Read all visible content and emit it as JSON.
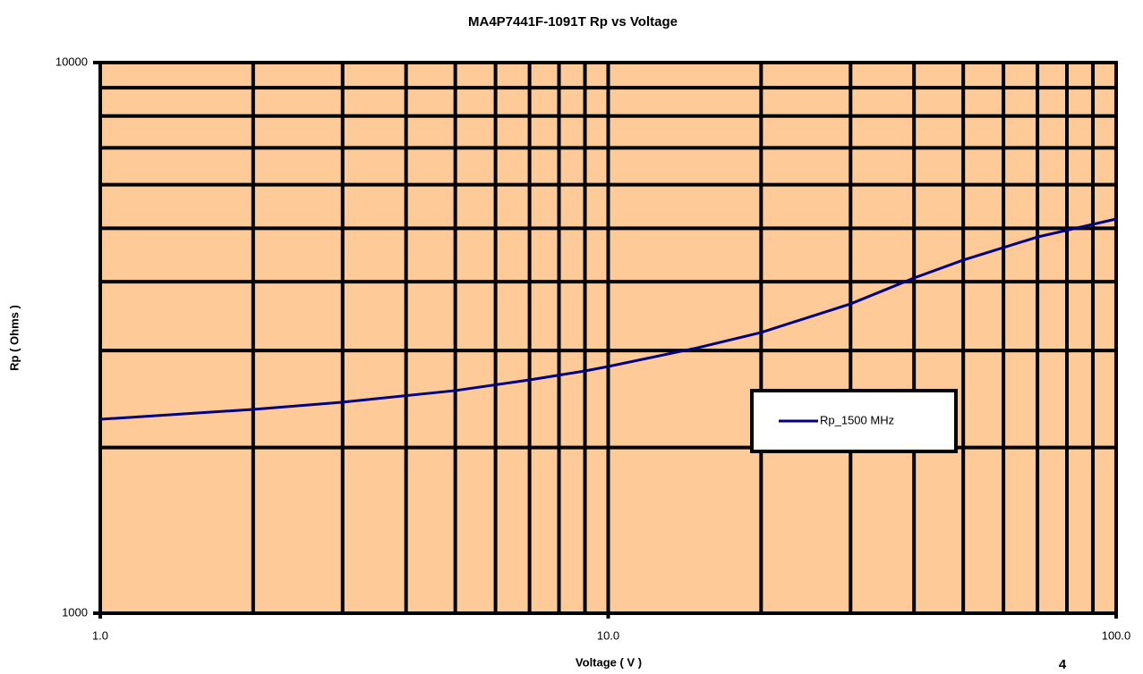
{
  "chart_data": {
    "type": "line",
    "title": "MA4P7441F-1091T Rp vs Voltage",
    "xlabel": "Voltage ( V )",
    "ylabel": "Rp ( Ohms )",
    "page_number": "4",
    "x": [
      1,
      2,
      3,
      5,
      7,
      9,
      10,
      15,
      20,
      30,
      40,
      50,
      70,
      100
    ],
    "series": [
      {
        "name": "Rp_1500 MHz",
        "color": "#000080",
        "values": [
          2250,
          2345,
          2417,
          2537,
          2653,
          2754,
          2806,
          3034,
          3235,
          3646,
          4062,
          4378,
          4822,
          5199
        ]
      }
    ],
    "xscale": "log",
    "yscale": "log",
    "xlim": [
      1,
      100
    ],
    "ylim": [
      1000,
      10000
    ],
    "xticks": [
      {
        "value": 1,
        "label": "1.0"
      },
      {
        "value": 2,
        "label": null
      },
      {
        "value": 3,
        "label": null
      },
      {
        "value": 4,
        "label": null
      },
      {
        "value": 5,
        "label": null
      },
      {
        "value": 6,
        "label": null
      },
      {
        "value": 7,
        "label": null
      },
      {
        "value": 8,
        "label": null
      },
      {
        "value": 9,
        "label": null
      },
      {
        "value": 10,
        "label": "10.0"
      },
      {
        "value": 20,
        "label": null
      },
      {
        "value": 30,
        "label": null
      },
      {
        "value": 40,
        "label": null
      },
      {
        "value": 50,
        "label": null
      },
      {
        "value": 60,
        "label": null
      },
      {
        "value": 70,
        "label": null
      },
      {
        "value": 80,
        "label": null
      },
      {
        "value": 90,
        "label": null
      },
      {
        "value": 100,
        "label": "100.0"
      }
    ],
    "yticks": [
      1000,
      {
        "value": 2000,
        "label": null
      },
      {
        "value": 3000,
        "label": null
      },
      {
        "value": 4000,
        "label": null
      },
      {
        "value": 5000,
        "label": null
      },
      {
        "value": 6000,
        "label": null
      },
      {
        "value": 7000,
        "label": null
      },
      {
        "value": 8000,
        "label": null
      },
      {
        "value": 9000,
        "label": null
      },
      10000
    ],
    "grid": true,
    "background": "#fdca98",
    "legend": "right"
  }
}
